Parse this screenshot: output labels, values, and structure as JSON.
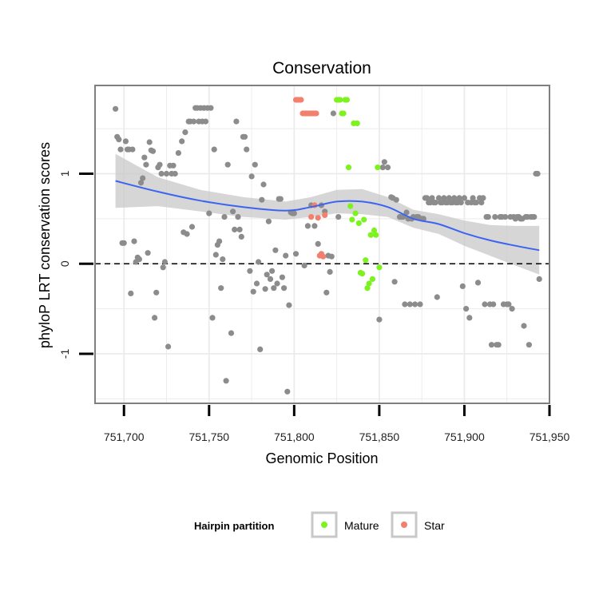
{
  "chart_data": {
    "type": "scatter",
    "title": "Conservation",
    "xlabel": "Genomic Position",
    "ylabel": "phyloP LRT conservation scores",
    "xlim": [
      751683,
      751950
    ],
    "ylim": [
      -1.55,
      1.98
    ],
    "x_ticks": [
      751700,
      751750,
      751800,
      751850,
      751900,
      751950
    ],
    "x_tick_labels": [
      "751,700",
      "751,750",
      "751,800",
      "751,850",
      "751,900",
      "751,950"
    ],
    "y_ticks": [
      -1,
      0,
      1
    ],
    "y_tick_labels": [
      "-1",
      "0",
      "1"
    ],
    "reference_line": {
      "y": 0,
      "style": "dashed"
    },
    "legend": {
      "title": "Hairpin partition",
      "position": "bottom",
      "entries": [
        {
          "label": "Mature",
          "color": "#7cf21e"
        },
        {
          "label": "Star",
          "color": "#f2806d"
        }
      ]
    },
    "colors": {
      "other": "#8c8c8c",
      "Mature": "#7cf21e",
      "Star": "#f2806d",
      "smooth": "#3c64f0",
      "ribbon": "#c8c8c8",
      "panel_border": "#7f7f7f",
      "grid": "#ebebeb"
    },
    "smooth": {
      "x": [
        751695,
        751720,
        751745,
        751770,
        751795,
        751810,
        751825,
        751840,
        751855,
        751870,
        751885,
        751900,
        751915,
        751930,
        751944
      ],
      "y": [
        0.92,
        0.8,
        0.7,
        0.63,
        0.59,
        0.63,
        0.69,
        0.69,
        0.63,
        0.5,
        0.44,
        0.34,
        0.26,
        0.2,
        0.15
      ],
      "upper": [
        1.22,
        0.96,
        0.82,
        0.74,
        0.69,
        0.74,
        0.82,
        0.83,
        0.74,
        0.6,
        0.55,
        0.48,
        0.43,
        0.42,
        0.42
      ],
      "lower": [
        0.62,
        0.64,
        0.58,
        0.52,
        0.49,
        0.52,
        0.56,
        0.55,
        0.52,
        0.4,
        0.33,
        0.2,
        0.09,
        -0.02,
        -0.12
      ]
    },
    "series": [
      {
        "name": "Other",
        "points": [
          [
            751695,
            1.72
          ],
          [
            751696,
            1.41
          ],
          [
            751697,
            1.38
          ],
          [
            751698,
            1.27
          ],
          [
            751699,
            0.23
          ],
          [
            751700,
            0.23
          ],
          [
            751701,
            1.36
          ],
          [
            751702,
            1.27
          ],
          [
            751703,
            1.27
          ],
          [
            751704,
            -0.33
          ],
          [
            751705,
            1.27
          ],
          [
            751706,
            0.25
          ],
          [
            751707,
            0.02
          ],
          [
            751708,
            0.07
          ],
          [
            751709,
            0.05
          ],
          [
            751710,
            0.9
          ],
          [
            751711,
            0.95
          ],
          [
            751712,
            1.18
          ],
          [
            751713,
            1.1
          ],
          [
            751714,
            0.12
          ],
          [
            751715,
            1.35
          ],
          [
            751716,
            1.26
          ],
          [
            751717,
            1.25
          ],
          [
            751718,
            -0.6
          ],
          [
            751719,
            -0.32
          ],
          [
            751720,
            1.07
          ],
          [
            751721,
            1.1
          ],
          [
            751722,
            1.0
          ],
          [
            751723,
            -0.04
          ],
          [
            751724,
            0.02
          ],
          [
            751725,
            1.0
          ],
          [
            751726,
            -0.92
          ],
          [
            751727,
            1.09
          ],
          [
            751728,
            1.0
          ],
          [
            751729,
            1.09
          ],
          [
            751730,
            1.0
          ],
          [
            751732,
            1.23
          ],
          [
            751734,
            1.36
          ],
          [
            751735,
            0.35
          ],
          [
            751736,
            1.46
          ],
          [
            751737,
            0.33
          ],
          [
            751738,
            1.58
          ],
          [
            751739,
            1.58
          ],
          [
            751740,
            0.41
          ],
          [
            751741,
            1.58
          ],
          [
            751742,
            1.73
          ],
          [
            751743,
            1.73
          ],
          [
            751744,
            1.58
          ],
          [
            751745,
            1.73
          ],
          [
            751746,
            1.58
          ],
          [
            751747,
            1.73
          ],
          [
            751748,
            1.58
          ],
          [
            751749,
            1.73
          ],
          [
            751750,
            0.56
          ],
          [
            751751,
            1.73
          ],
          [
            751752,
            -0.6
          ],
          [
            751753,
            1.27
          ],
          [
            751754,
            0.1
          ],
          [
            751755,
            0.21
          ],
          [
            751756,
            0.25
          ],
          [
            751757,
            -0.27
          ],
          [
            751758,
            0.05
          ],
          [
            751759,
            0.52
          ],
          [
            751760,
            -1.3
          ],
          [
            751761,
            1.1
          ],
          [
            751763,
            -0.77
          ],
          [
            751764,
            0.58
          ],
          [
            751765,
            0.38
          ],
          [
            751766,
            1.58
          ],
          [
            751767,
            0.52
          ],
          [
            751768,
            0.38
          ],
          [
            751769,
            0.3
          ],
          [
            751770,
            1.41
          ],
          [
            751771,
            1.41
          ],
          [
            751772,
            1.27
          ],
          [
            751774,
            -0.08
          ],
          [
            751775,
            0.97
          ],
          [
            751776,
            -0.31
          ],
          [
            751777,
            1.1
          ],
          [
            751778,
            -0.22
          ],
          [
            751779,
            0.02
          ],
          [
            751780,
            -0.95
          ],
          [
            751781,
            0.71
          ],
          [
            751782,
            0.88
          ],
          [
            751783,
            -0.28
          ],
          [
            751784,
            -0.12
          ],
          [
            751785,
            0.47
          ],
          [
            751786,
            -0.17
          ],
          [
            751787,
            -0.08
          ],
          [
            751788,
            -0.27
          ],
          [
            751789,
            0.15
          ],
          [
            751790,
            -0.22
          ],
          [
            751791,
            0.72
          ],
          [
            751792,
            0.72
          ],
          [
            751793,
            -0.15
          ],
          [
            751794,
            -0.27
          ],
          [
            751795,
            0.09
          ],
          [
            751796,
            -1.42
          ],
          [
            751797,
            -0.46
          ],
          [
            751798,
            0.57
          ],
          [
            751799,
            0.56
          ],
          [
            751800,
            0.56
          ],
          [
            751801,
            0.11
          ],
          [
            751806,
            -0.02
          ],
          [
            751808,
            0.42
          ],
          [
            751810,
            0.65
          ],
          [
            751812,
            0.42
          ],
          [
            751814,
            0.22
          ],
          [
            751816,
            0.65
          ],
          [
            751818,
            0.58
          ],
          [
            751819,
            -0.32
          ],
          [
            751820,
            0.09
          ],
          [
            751821,
            -0.09
          ],
          [
            751822,
            0.08
          ],
          [
            751823,
            1.67
          ],
          [
            751826,
            0.52
          ],
          [
            751850,
            -0.62
          ],
          [
            751852,
            1.07
          ],
          [
            751853,
            1.13
          ],
          [
            751855,
            1.07
          ],
          [
            751857,
            0.74
          ],
          [
            751858,
            0.73
          ],
          [
            751859,
            -0.2
          ],
          [
            751860,
            0.71
          ],
          [
            751862,
            0.52
          ],
          [
            751863,
            0.52
          ],
          [
            751864,
            0.52
          ],
          [
            751865,
            -0.45
          ],
          [
            751866,
            0.57
          ],
          [
            751867,
            0.5
          ],
          [
            751868,
            -0.45
          ],
          [
            751869,
            0.5
          ],
          [
            751870,
            0.52
          ],
          [
            751871,
            -0.45
          ],
          [
            751872,
            0.52
          ],
          [
            751873,
            0.52
          ],
          [
            751874,
            -0.45
          ],
          [
            751875,
            0.5
          ],
          [
            751876,
            0.5
          ],
          [
            751877,
            0.73
          ],
          [
            751878,
            0.73
          ],
          [
            751879,
            0.68
          ],
          [
            751880,
            0.68
          ],
          [
            751881,
            0.73
          ],
          [
            751882,
            0.68
          ],
          [
            751883,
            0.68
          ],
          [
            751884,
            -0.37
          ],
          [
            751885,
            0.73
          ],
          [
            751886,
            0.68
          ],
          [
            751887,
            0.68
          ],
          [
            751888,
            0.73
          ],
          [
            751889,
            0.68
          ],
          [
            751890,
            0.68
          ],
          [
            751891,
            0.73
          ],
          [
            751892,
            0.68
          ],
          [
            751893,
            0.68
          ],
          [
            751894,
            0.73
          ],
          [
            751895,
            0.68
          ],
          [
            751896,
            0.68
          ],
          [
            751897,
            0.73
          ],
          [
            751898,
            0.68
          ],
          [
            751899,
            -0.25
          ],
          [
            751900,
            0.73
          ],
          [
            751901,
            -0.5
          ],
          [
            751902,
            0.68
          ],
          [
            751903,
            -0.6
          ],
          [
            751904,
            0.68
          ],
          [
            751905,
            0.73
          ],
          [
            751906,
            0.68
          ],
          [
            751907,
            0.68
          ],
          [
            751908,
            -0.21
          ],
          [
            751909,
            0.73
          ],
          [
            751910,
            0.68
          ],
          [
            751911,
            0.73
          ],
          [
            751912,
            -0.45
          ],
          [
            751913,
            0.52
          ],
          [
            751914,
            0.52
          ],
          [
            751915,
            -0.45
          ],
          [
            751916,
            -0.9
          ],
          [
            751917,
            -0.45
          ],
          [
            751918,
            0.52
          ],
          [
            751919,
            -0.9
          ],
          [
            751920,
            -0.9
          ],
          [
            751921,
            0.52
          ],
          [
            751922,
            0.52
          ],
          [
            751923,
            -0.45
          ],
          [
            751924,
            0.52
          ],
          [
            751925,
            -0.45
          ],
          [
            751926,
            -0.45
          ],
          [
            751927,
            0.52
          ],
          [
            751928,
            -0.5
          ],
          [
            751929,
            0.52
          ],
          [
            751930,
            0.5
          ],
          [
            751931,
            0.52
          ],
          [
            751932,
            0.52
          ],
          [
            751933,
            0.5
          ],
          [
            751934,
            0.5
          ],
          [
            751935,
            -0.69
          ],
          [
            751936,
            0.52
          ],
          [
            751937,
            0.52
          ],
          [
            751938,
            -0.9
          ],
          [
            751939,
            0.52
          ],
          [
            751940,
            0.52
          ],
          [
            751941,
            0.52
          ],
          [
            751942,
            1.0
          ],
          [
            751943,
            1.0
          ],
          [
            751944,
            -0.17
          ]
        ]
      },
      {
        "name": "Star",
        "points": [
          [
            751801,
            1.82
          ],
          [
            751802,
            1.82
          ],
          [
            751803,
            1.82
          ],
          [
            751804,
            1.82
          ],
          [
            751805,
            1.67
          ],
          [
            751806,
            1.67
          ],
          [
            751807,
            1.67
          ],
          [
            751808,
            1.67
          ],
          [
            751809,
            1.67
          ],
          [
            751810,
            1.67
          ],
          [
            751811,
            1.67
          ],
          [
            751812,
            1.67
          ],
          [
            751813,
            1.67
          ],
          [
            751810,
            0.52
          ],
          [
            751812,
            0.65
          ],
          [
            751814,
            0.51
          ],
          [
            751815,
            0.09
          ],
          [
            751816,
            0.11
          ],
          [
            751817,
            0.08
          ],
          [
            751818,
            0.54
          ]
        ]
      },
      {
        "name": "Mature",
        "points": [
          [
            751825,
            1.82
          ],
          [
            751826,
            1.82
          ],
          [
            751827,
            1.82
          ],
          [
            751828,
            1.67
          ],
          [
            751829,
            1.67
          ],
          [
            751830,
            1.82
          ],
          [
            751831,
            1.82
          ],
          [
            751832,
            1.07
          ],
          [
            751833,
            0.64
          ],
          [
            751834,
            0.49
          ],
          [
            751835,
            1.56
          ],
          [
            751836,
            0.56
          ],
          [
            751837,
            1.56
          ],
          [
            751838,
            0.45
          ],
          [
            751839,
            -0.1
          ],
          [
            751840,
            -0.11
          ],
          [
            751841,
            0.49
          ],
          [
            751842,
            0.04
          ],
          [
            751843,
            -0.27
          ],
          [
            751844,
            -0.22
          ],
          [
            751845,
            0.32
          ],
          [
            751846,
            -0.17
          ],
          [
            751847,
            0.37
          ],
          [
            751848,
            0.32
          ],
          [
            751849,
            1.07
          ],
          [
            751850,
            -0.04
          ]
        ]
      }
    ]
  }
}
